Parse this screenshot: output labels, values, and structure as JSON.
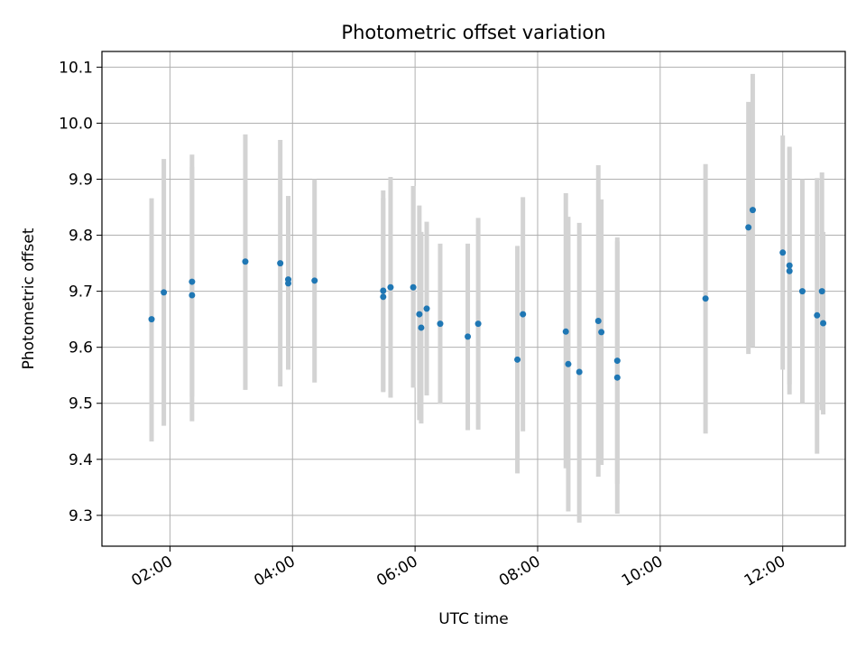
{
  "chart_data": {
    "type": "scatter",
    "title": "Photometric offset variation",
    "xlabel": "UTC time",
    "ylabel": "Photometric offset",
    "x_unit": "hours UTC",
    "xlim": [
      0.89,
      13.02
    ],
    "ylim": [
      9.245,
      10.128
    ],
    "xticks": [
      {
        "value": 2,
        "label": "02:00"
      },
      {
        "value": 4,
        "label": "04:00"
      },
      {
        "value": 6,
        "label": "06:00"
      },
      {
        "value": 8,
        "label": "08:00"
      },
      {
        "value": 10,
        "label": "10:00"
      },
      {
        "value": 12,
        "label": "12:00"
      }
    ],
    "yticks": [
      {
        "value": 9.3,
        "label": "9.3"
      },
      {
        "value": 9.4,
        "label": "9.4"
      },
      {
        "value": 9.5,
        "label": "9.5"
      },
      {
        "value": 9.6,
        "label": "9.6"
      },
      {
        "value": 9.7,
        "label": "9.7"
      },
      {
        "value": 9.8,
        "label": "9.8"
      },
      {
        "value": 9.9,
        "label": "9.9"
      },
      {
        "value": 10.0,
        "label": "10.0"
      },
      {
        "value": 10.1,
        "label": "10.1"
      }
    ],
    "grid": true,
    "marker_color": "#1f77b4",
    "errorbar_color": "#d3d3d3",
    "points": [
      {
        "x": 1.7,
        "y": 9.65,
        "err_low": 9.432,
        "err_high": 9.866
      },
      {
        "x": 1.9,
        "y": 9.698,
        "err_low": 9.46,
        "err_high": 9.936
      },
      {
        "x": 2.36,
        "y": 9.717,
        "err_low": 9.512,
        "err_high": 9.922
      },
      {
        "x": 2.36,
        "y": 9.693,
        "err_low": 9.468,
        "err_high": 9.944
      },
      {
        "x": 3.23,
        "y": 9.753,
        "err_low": 9.524,
        "err_high": 9.98
      },
      {
        "x": 3.8,
        "y": 9.75,
        "err_low": 9.53,
        "err_high": 9.97
      },
      {
        "x": 3.93,
        "y": 9.721,
        "err_low": 9.56,
        "err_high": 9.87
      },
      {
        "x": 3.93,
        "y": 9.714,
        "err_low": 9.56,
        "err_high": 9.87
      },
      {
        "x": 4.36,
        "y": 9.719,
        "err_low": 9.537,
        "err_high": 9.9
      },
      {
        "x": 5.48,
        "y": 9.701,
        "err_low": 9.52,
        "err_high": 9.88
      },
      {
        "x": 5.48,
        "y": 9.69,
        "err_low": 9.522,
        "err_high": 9.866
      },
      {
        "x": 5.6,
        "y": 9.707,
        "err_low": 9.51,
        "err_high": 9.904
      },
      {
        "x": 5.97,
        "y": 9.707,
        "err_low": 9.528,
        "err_high": 9.888
      },
      {
        "x": 6.07,
        "y": 9.659,
        "err_low": 9.47,
        "err_high": 9.853
      },
      {
        "x": 6.1,
        "y": 9.635,
        "err_low": 9.464,
        "err_high": 9.806
      },
      {
        "x": 6.19,
        "y": 9.669,
        "err_low": 9.514,
        "err_high": 9.824
      },
      {
        "x": 6.41,
        "y": 9.642,
        "err_low": 9.499,
        "err_high": 9.785
      },
      {
        "x": 6.86,
        "y": 9.619,
        "err_low": 9.452,
        "err_high": 9.785
      },
      {
        "x": 7.03,
        "y": 9.642,
        "err_low": 9.453,
        "err_high": 9.831
      },
      {
        "x": 7.67,
        "y": 9.578,
        "err_low": 9.375,
        "err_high": 9.781
      },
      {
        "x": 7.76,
        "y": 9.659,
        "err_low": 9.45,
        "err_high": 9.868
      },
      {
        "x": 8.46,
        "y": 9.628,
        "err_low": 9.384,
        "err_high": 9.875
      },
      {
        "x": 8.5,
        "y": 9.57,
        "err_low": 9.307,
        "err_high": 9.833
      },
      {
        "x": 8.68,
        "y": 9.556,
        "err_low": 9.287,
        "err_high": 9.822
      },
      {
        "x": 8.99,
        "y": 9.647,
        "err_low": 9.369,
        "err_high": 9.925
      },
      {
        "x": 9.04,
        "y": 9.627,
        "err_low": 9.39,
        "err_high": 9.864
      },
      {
        "x": 9.3,
        "y": 9.576,
        "err_low": 9.356,
        "err_high": 9.796
      },
      {
        "x": 9.3,
        "y": 9.546,
        "err_low": 9.303,
        "err_high": 9.789
      },
      {
        "x": 10.74,
        "y": 9.687,
        "err_low": 9.446,
        "err_high": 9.927
      },
      {
        "x": 11.44,
        "y": 9.814,
        "err_low": 9.588,
        "err_high": 10.038
      },
      {
        "x": 11.51,
        "y": 9.845,
        "err_low": 9.6,
        "err_high": 10.088
      },
      {
        "x": 12.0,
        "y": 9.769,
        "err_low": 9.56,
        "err_high": 9.978
      },
      {
        "x": 12.11,
        "y": 9.746,
        "err_low": 9.534,
        "err_high": 9.958
      },
      {
        "x": 12.11,
        "y": 9.736,
        "err_low": 9.516,
        "err_high": 9.956
      },
      {
        "x": 12.32,
        "y": 9.7,
        "err_low": 9.5,
        "err_high": 9.9
      },
      {
        "x": 12.56,
        "y": 9.657,
        "err_low": 9.41,
        "err_high": 9.902
      },
      {
        "x": 12.64,
        "y": 9.7,
        "err_low": 9.488,
        "err_high": 9.912
      },
      {
        "x": 12.66,
        "y": 9.643,
        "err_low": 9.48,
        "err_high": 9.806
      }
    ]
  }
}
